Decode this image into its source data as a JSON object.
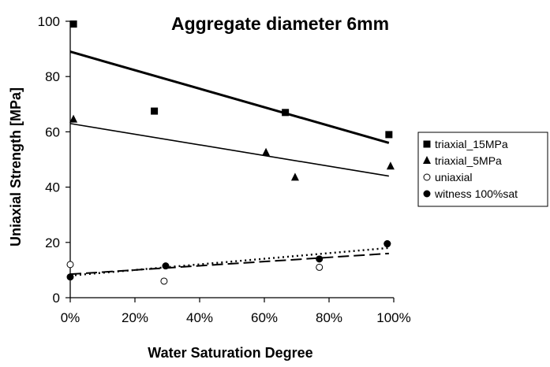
{
  "chart_data": {
    "type": "scatter",
    "title": "Aggregate diameter 6mm",
    "xlabel": "Water Saturation Degree",
    "ylabel": "Uniaxial Strength [MPa]",
    "xlim": [
      0,
      1
    ],
    "ylim": [
      0,
      100
    ],
    "x_ticks": [
      0,
      0.2,
      0.4,
      0.6,
      0.8,
      1.0
    ],
    "x_tick_labels": [
      "0%",
      "20%",
      "40%",
      "60%",
      "80%",
      "100%"
    ],
    "y_ticks": [
      0,
      20,
      40,
      60,
      80,
      100
    ],
    "y_tick_labels": [
      "0",
      "20",
      "40",
      "60",
      "80",
      "100"
    ],
    "grid": false,
    "legend_position": "right",
    "series": [
      {
        "name": "triaxial_15MPa",
        "marker": "square",
        "color": "#000000",
        "points": [
          [
            0.01,
            99
          ],
          [
            0.26,
            67.5
          ],
          [
            0.665,
            67
          ],
          [
            0.985,
            59
          ]
        ],
        "trendline": {
          "from": [
            0,
            89
          ],
          "to": [
            0.985,
            56
          ],
          "style": "solid-thick"
        }
      },
      {
        "name": "triaxial_5MPa",
        "marker": "triangle",
        "color": "#000000",
        "points": [
          [
            0.01,
            64.5
          ],
          [
            0.605,
            52.5
          ],
          [
            0.695,
            43.5
          ],
          [
            0.99,
            47.5
          ]
        ],
        "trendline": {
          "from": [
            0,
            63
          ],
          "to": [
            0.985,
            44
          ],
          "style": "solid-thin"
        }
      },
      {
        "name": "uniaxial",
        "marker": "circle-open",
        "color": "#000000",
        "points": [
          [
            0.0,
            12
          ],
          [
            0.29,
            6
          ],
          [
            0.77,
            11
          ],
          [
            0.98,
            19.5
          ]
        ],
        "trendline": {
          "from": [
            0,
            8
          ],
          "to": [
            0.985,
            18
          ],
          "style": "dotted"
        }
      },
      {
        "name": "witness 100%sat",
        "marker": "circle-filled",
        "color": "#000000",
        "points": [
          [
            0.0,
            7.5
          ],
          [
            0.295,
            11.5
          ],
          [
            0.77,
            14
          ],
          [
            0.98,
            19.5
          ]
        ],
        "trendline": {
          "from": [
            0,
            8.5
          ],
          "to": [
            0.985,
            16
          ],
          "style": "dashed"
        }
      }
    ]
  }
}
